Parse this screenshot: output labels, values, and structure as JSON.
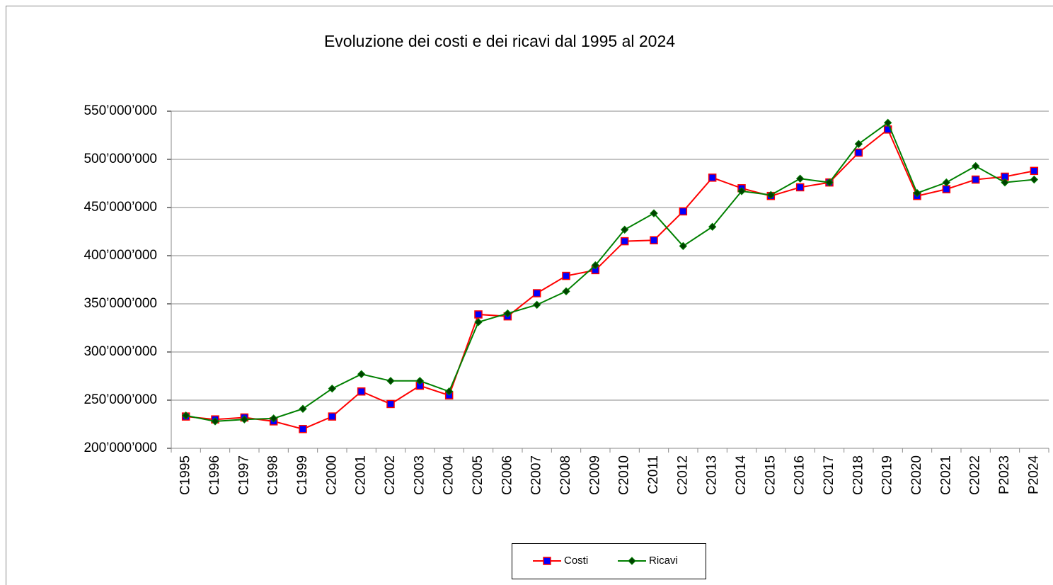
{
  "chart_data": {
    "type": "line",
    "title": "Evoluzione dei costi e dei ricavi dal 1995 al 2024",
    "categories": [
      "C1995",
      "C1996",
      "C1997",
      "C1998",
      "C1999",
      "C2000",
      "C2001",
      "C2002",
      "C2003",
      "C2004",
      "C2005",
      "C2006",
      "C2007",
      "C2008",
      "C2009",
      "C2010",
      "C2011",
      "C2012",
      "C2013",
      "C2014",
      "C2015",
      "C2016",
      "C2017",
      "C2018",
      "C2019",
      "C2020",
      "C2021",
      "C2022",
      "P2023",
      "P2024"
    ],
    "series": [
      {
        "name": "Costi",
        "color": "#ff0000",
        "marker": "square",
        "marker_color": "#0000ff",
        "values": [
          233000000,
          230000000,
          232000000,
          228000000,
          220000000,
          233000000,
          259000000,
          246000000,
          265000000,
          255000000,
          339000000,
          337000000,
          361000000,
          379000000,
          385000000,
          415000000,
          416000000,
          446000000,
          481000000,
          470000000,
          462000000,
          471000000,
          476000000,
          507000000,
          531000000,
          462000000,
          469000000,
          479000000,
          482000000,
          488000000
        ]
      },
      {
        "name": "Ricavi",
        "color": "#008000",
        "marker": "diamond",
        "marker_color": "#004000",
        "values": [
          234000000,
          228000000,
          230000000,
          231000000,
          241000000,
          262000000,
          277000000,
          270000000,
          270000000,
          259000000,
          331000000,
          340000000,
          349000000,
          363000000,
          390000000,
          427000000,
          444000000,
          410000000,
          430000000,
          467000000,
          463000000,
          480000000,
          476000000,
          516000000,
          538000000,
          465000000,
          476000000,
          493000000,
          476000000,
          479000000
        ]
      }
    ],
    "ylim": [
      200000000,
      550000000
    ],
    "yticks": [
      {
        "value": 200000000,
        "label": "200’000’000"
      },
      {
        "value": 250000000,
        "label": "250’000’000"
      },
      {
        "value": 300000000,
        "label": "300’000’000"
      },
      {
        "value": 350000000,
        "label": "350’000’000"
      },
      {
        "value": 400000000,
        "label": "400’000’000"
      },
      {
        "value": 450000000,
        "label": "450’000’000"
      },
      {
        "value": 500000000,
        "label": "500’000’000"
      },
      {
        "value": 550000000,
        "label": "550’000’000"
      }
    ],
    "grid": true,
    "legend": "bottom"
  }
}
